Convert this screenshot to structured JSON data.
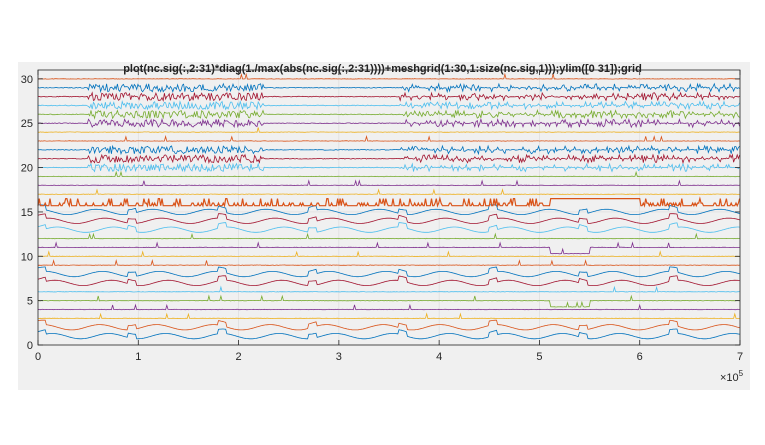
{
  "chart_data": {
    "type": "line",
    "title": "plot(nc.sig(:,2:31)*diag(1./max(abs(nc.sig(:,2:31))))+meshgrid(1:30,1:size(nc.sig,1)));ylim([0 31]);grid",
    "xlabel": "",
    "ylabel": "",
    "xlim": [
      0,
      700000
    ],
    "ylim": [
      0,
      31
    ],
    "x_exponent_label": "×10^5",
    "x_ticks": [
      "0",
      "1",
      "2",
      "3",
      "4",
      "5",
      "6",
      "7"
    ],
    "y_ticks": [
      "0",
      "5",
      "10",
      "15",
      "20",
      "25",
      "30"
    ],
    "grid": true,
    "legend": null,
    "series_count": 30,
    "series_offsets": [
      1,
      2,
      3,
      4,
      5,
      6,
      7,
      8,
      9,
      10,
      11,
      12,
      13,
      14,
      15,
      16,
      17,
      18,
      19,
      20,
      21,
      22,
      23,
      24,
      25,
      26,
      27,
      28,
      29,
      30
    ],
    "series_colors": [
      "#0072BD",
      "#D95319",
      "#EDB120",
      "#7E2F8E",
      "#77AC30",
      "#4DBEEE",
      "#A2142F"
    ],
    "notes": "30 normalized signal channels stacked with integer offsets 1..30; step events near x≈5.1e5–5.5e5"
  },
  "axes": {
    "x_multiplier": "×10",
    "x_multiplier_exp": "5"
  }
}
